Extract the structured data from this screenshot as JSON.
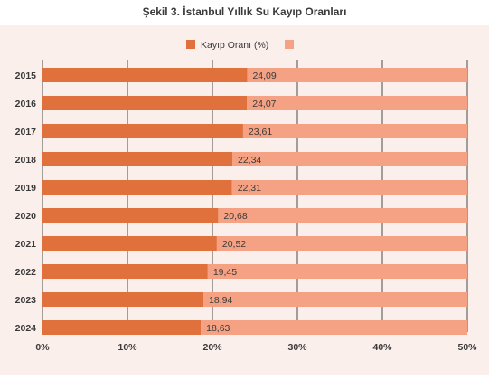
{
  "chart_data": {
    "type": "bar",
    "orientation": "horizontal",
    "stacked": true,
    "title": "Şekil 3. İstanbul Yıllık Su Kayıp Oranları",
    "categories": [
      "2015",
      "2016",
      "2017",
      "2018",
      "2019",
      "2020",
      "2021",
      "2022",
      "2023",
      "2024"
    ],
    "series": [
      {
        "name": "Kayıp Oranı (%)",
        "color": "#e0703c",
        "values": [
          24.09,
          24.07,
          23.61,
          22.34,
          22.31,
          20.68,
          20.52,
          19.45,
          18.94,
          18.63
        ],
        "labels": [
          "24,09",
          "24,07",
          "23,61",
          "22,34",
          "22,31",
          "20,68",
          "20,52",
          "19,45",
          "18,94",
          "18,63"
        ]
      },
      {
        "name": "",
        "color": "#f4a283",
        "values": [
          25.91,
          25.93,
          26.39,
          27.66,
          27.69,
          29.32,
          29.48,
          30.55,
          31.06,
          31.37
        ]
      }
    ],
    "xlim": [
      0,
      50
    ],
    "xticks": [
      0,
      10,
      20,
      30,
      40,
      50
    ],
    "xtick_labels": [
      "0%",
      "10%",
      "20%",
      "30%",
      "40%",
      "50%"
    ],
    "grid": true,
    "legend_position": "top-center",
    "bar_label_color": "#3a3a3a"
  }
}
